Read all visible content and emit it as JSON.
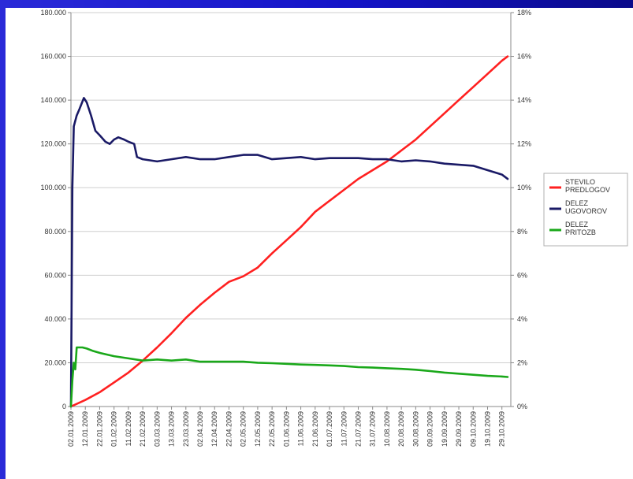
{
  "chart_data": {
    "type": "line",
    "title": "",
    "xlabel": "",
    "ylabel": "",
    "ylim": [
      0,
      180000
    ],
    "y2lim": [
      0,
      18
    ],
    "y_ticks": [
      "0",
      "20.000",
      "40.000",
      "60.000",
      "80.000",
      "100.000",
      "120.000",
      "140.000",
      "160.000",
      "180.000"
    ],
    "y2_ticks": [
      "0%",
      "2%",
      "4%",
      "6%",
      "8%",
      "10%",
      "12%",
      "14%",
      "16%",
      "18%"
    ],
    "x_ticks": [
      "02.01.2009",
      "12.01.2009",
      "22.01.2009",
      "01.02.2009",
      "11.02.2009",
      "21.02.2009",
      "03.03.2009",
      "13.03.2009",
      "23.03.2009",
      "02.04.2009",
      "12.04.2009",
      "22.04.2009",
      "02.05.2009",
      "12.05.2009",
      "22.05.2009",
      "01.06.2009",
      "11.06.2009",
      "21.06.2009",
      "01.07.2009",
      "11.07.2009",
      "21.07.2009",
      "31.07.2009",
      "10.08.2009",
      "20.08.2009",
      "30.08.2009",
      "09.09.2009",
      "19.09.2009",
      "29.09.2009",
      "09.10.2009",
      "19.10.2009",
      "29.10.2009"
    ],
    "grid": true,
    "legend_position": "right",
    "series": [
      {
        "name": "STEVILO PREDLOGOV",
        "axis": "left",
        "color": "#ff2020",
        "points": [
          [
            "02.01.2009",
            0
          ],
          [
            "12.01.2009",
            3000
          ],
          [
            "22.01.2009",
            6500
          ],
          [
            "01.02.2009",
            11000
          ],
          [
            "11.02.2009",
            15500
          ],
          [
            "21.02.2009",
            21000
          ],
          [
            "03.03.2009",
            27000
          ],
          [
            "13.03.2009",
            33500
          ],
          [
            "23.03.2009",
            40500
          ],
          [
            "02.04.2009",
            46500
          ],
          [
            "12.04.2009",
            52000
          ],
          [
            "22.04.2009",
            57000
          ],
          [
            "02.05.2009",
            59500
          ],
          [
            "12.05.2009",
            63500
          ],
          [
            "22.05.2009",
            70000
          ],
          [
            "01.06.2009",
            76000
          ],
          [
            "11.06.2009",
            82000
          ],
          [
            "21.06.2009",
            89000
          ],
          [
            "01.07.2009",
            94000
          ],
          [
            "11.07.2009",
            99000
          ],
          [
            "21.07.2009",
            104000
          ],
          [
            "31.07.2009",
            108000
          ],
          [
            "10.08.2009",
            112000
          ],
          [
            "20.08.2009",
            117000
          ],
          [
            "30.08.2009",
            122000
          ],
          [
            "09.09.2009",
            128000
          ],
          [
            "19.09.2009",
            134000
          ],
          [
            "29.09.2009",
            140000
          ],
          [
            "09.10.2009",
            146000
          ],
          [
            "19.10.2009",
            152000
          ],
          [
            "29.10.2009",
            158000
          ],
          [
            "02.11.2009",
            160000
          ]
        ]
      },
      {
        "name": "DELEZ UGOVOROV",
        "axis": "right",
        "color": "#1a1a66",
        "points": [
          [
            "02.01.2009",
            0
          ],
          [
            "03.01.2009",
            10
          ],
          [
            "04.01.2009",
            12.8
          ],
          [
            "06.01.2009",
            13.3
          ],
          [
            "08.01.2009",
            13.6
          ],
          [
            "11.01.2009",
            14.1
          ],
          [
            "13.01.2009",
            13.9
          ],
          [
            "16.01.2009",
            13.3
          ],
          [
            "19.01.2009",
            12.6
          ],
          [
            "22.01.2009",
            12.4
          ],
          [
            "26.01.2009",
            12.1
          ],
          [
            "29.01.2009",
            12.0
          ],
          [
            "01.02.2009",
            12.2
          ],
          [
            "04.02.2009",
            12.3
          ],
          [
            "08.02.2009",
            12.2
          ],
          [
            "11.02.2009",
            12.1
          ],
          [
            "15.02.2009",
            12.0
          ],
          [
            "17.02.2009",
            11.4
          ],
          [
            "21.02.2009",
            11.3
          ],
          [
            "03.03.2009",
            11.2
          ],
          [
            "13.03.2009",
            11.3
          ],
          [
            "23.03.2009",
            11.4
          ],
          [
            "02.04.2009",
            11.3
          ],
          [
            "12.04.2009",
            11.3
          ],
          [
            "22.04.2009",
            11.4
          ],
          [
            "02.05.2009",
            11.5
          ],
          [
            "12.05.2009",
            11.5
          ],
          [
            "22.05.2009",
            11.3
          ],
          [
            "01.06.2009",
            11.35
          ],
          [
            "11.06.2009",
            11.4
          ],
          [
            "21.06.2009",
            11.3
          ],
          [
            "01.07.2009",
            11.35
          ],
          [
            "11.07.2009",
            11.35
          ],
          [
            "21.07.2009",
            11.35
          ],
          [
            "31.07.2009",
            11.3
          ],
          [
            "10.08.2009",
            11.3
          ],
          [
            "20.08.2009",
            11.2
          ],
          [
            "30.08.2009",
            11.25
          ],
          [
            "09.09.2009",
            11.2
          ],
          [
            "19.09.2009",
            11.1
          ],
          [
            "29.09.2009",
            11.05
          ],
          [
            "09.10.2009",
            11.0
          ],
          [
            "19.10.2009",
            10.8
          ],
          [
            "29.10.2009",
            10.6
          ],
          [
            "02.11.2009",
            10.4
          ]
        ]
      },
      {
        "name": "DELEZ PRITOZB",
        "axis": "right",
        "color": "#1aa81a",
        "points": [
          [
            "02.01.2009",
            0
          ],
          [
            "03.01.2009",
            1.2
          ],
          [
            "04.01.2009",
            2.0
          ],
          [
            "05.01.2009",
            1.7
          ],
          [
            "06.01.2009",
            2.7
          ],
          [
            "10.01.2009",
            2.7
          ],
          [
            "13.01.2009",
            2.65
          ],
          [
            "17.01.2009",
            2.55
          ],
          [
            "22.01.2009",
            2.45
          ],
          [
            "01.02.2009",
            2.3
          ],
          [
            "11.02.2009",
            2.2
          ],
          [
            "21.02.2009",
            2.1
          ],
          [
            "03.03.2009",
            2.15
          ],
          [
            "13.03.2009",
            2.1
          ],
          [
            "23.03.2009",
            2.15
          ],
          [
            "02.04.2009",
            2.05
          ],
          [
            "12.04.2009",
            2.05
          ],
          [
            "22.04.2009",
            2.05
          ],
          [
            "02.05.2009",
            2.05
          ],
          [
            "12.05.2009",
            2.0
          ],
          [
            "22.05.2009",
            1.98
          ],
          [
            "01.06.2009",
            1.95
          ],
          [
            "11.06.2009",
            1.92
          ],
          [
            "21.06.2009",
            1.9
          ],
          [
            "01.07.2009",
            1.88
          ],
          [
            "11.07.2009",
            1.85
          ],
          [
            "21.07.2009",
            1.8
          ],
          [
            "31.07.2009",
            1.78
          ],
          [
            "10.08.2009",
            1.75
          ],
          [
            "20.08.2009",
            1.72
          ],
          [
            "30.08.2009",
            1.68
          ],
          [
            "09.09.2009",
            1.62
          ],
          [
            "19.09.2009",
            1.55
          ],
          [
            "29.09.2009",
            1.5
          ],
          [
            "09.10.2009",
            1.45
          ],
          [
            "19.10.2009",
            1.4
          ],
          [
            "29.10.2009",
            1.37
          ],
          [
            "02.11.2009",
            1.35
          ]
        ]
      }
    ],
    "legend": [
      {
        "line1": "STEVILO",
        "line2": "PREDLOGOV",
        "color": "#ff2020"
      },
      {
        "line1": "DELEZ",
        "line2": "UGOVOROV",
        "color": "#1a1a66"
      },
      {
        "line1": "DELEZ",
        "line2": "PRITOZB",
        "color": "#1aa81a"
      }
    ]
  }
}
